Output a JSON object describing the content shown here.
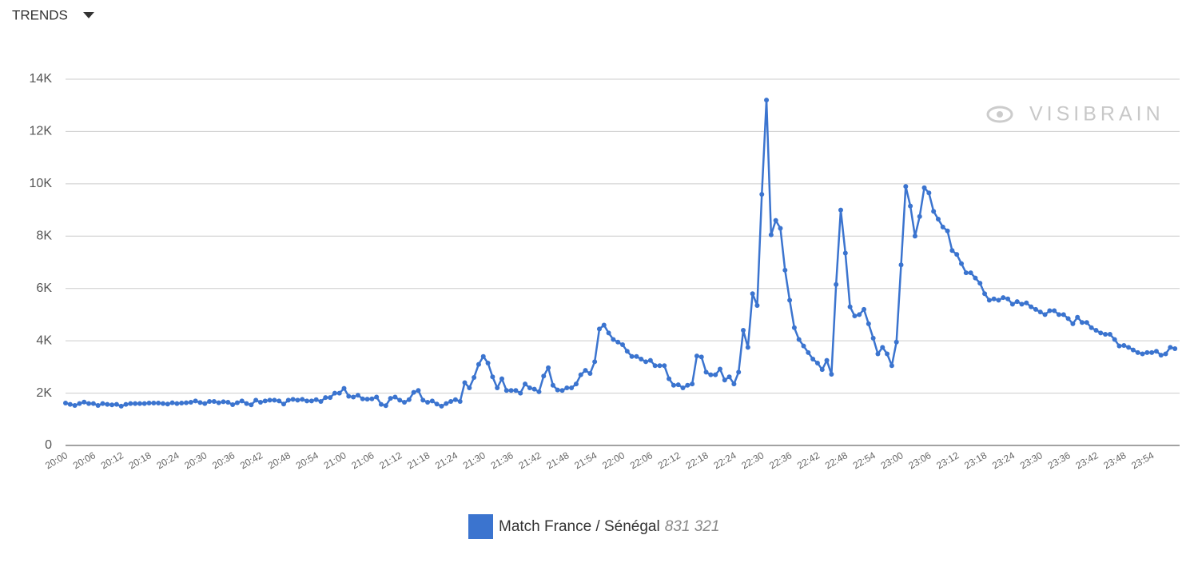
{
  "header": {
    "title": "TRENDS"
  },
  "chart_data": {
    "type": "line",
    "watermark": "VISIBRAIN",
    "categories": [
      "20:00",
      null,
      null,
      null,
      null,
      null,
      "20:06",
      null,
      null,
      null,
      null,
      null,
      "20:12",
      null,
      null,
      null,
      null,
      null,
      "20:18",
      null,
      null,
      null,
      null,
      null,
      "20:24",
      null,
      null,
      null,
      null,
      null,
      "20:30",
      null,
      null,
      null,
      null,
      null,
      "20:36",
      null,
      null,
      null,
      null,
      null,
      "20:42",
      null,
      null,
      null,
      null,
      null,
      "20:48",
      null,
      null,
      null,
      null,
      null,
      "20:54",
      null,
      null,
      null,
      null,
      null,
      "21:00",
      null,
      null,
      null,
      null,
      null,
      "21:06",
      null,
      null,
      null,
      null,
      null,
      "21:12",
      null,
      null,
      null,
      null,
      null,
      "21:18",
      null,
      null,
      null,
      null,
      null,
      "21:24",
      null,
      null,
      null,
      null,
      null,
      "21:30",
      null,
      null,
      null,
      null,
      null,
      "21:36",
      null,
      null,
      null,
      null,
      null,
      "21:42",
      null,
      null,
      null,
      null,
      null,
      "21:48",
      null,
      null,
      null,
      null,
      null,
      "21:54",
      null,
      null,
      null,
      null,
      null,
      "22:00",
      null,
      null,
      null,
      null,
      null,
      "22:06",
      null,
      null,
      null,
      null,
      null,
      "22:12",
      null,
      null,
      null,
      null,
      null,
      "22:18",
      null,
      null,
      null,
      null,
      null,
      "22:24",
      null,
      null,
      null,
      null,
      null,
      "22:30",
      null,
      null,
      null,
      null,
      null,
      "22:36",
      null,
      null,
      null,
      null,
      null,
      "22:42",
      null,
      null,
      null,
      null,
      null,
      "22:48",
      null,
      null,
      null,
      null,
      null,
      "22:54",
      null,
      null,
      null,
      null,
      null,
      "23:00",
      null,
      null,
      null,
      null,
      null,
      "23:06",
      null,
      null,
      null,
      null,
      null,
      "23:12",
      null,
      null,
      null,
      null,
      null,
      "23:18",
      null,
      null,
      null,
      null,
      null,
      "23:24",
      null,
      null,
      null,
      null,
      null,
      "23:30",
      null,
      null,
      null,
      null,
      null,
      "23:36",
      null,
      null,
      null,
      null,
      null,
      "23:42",
      null,
      null,
      null,
      null,
      null,
      "23:48",
      null,
      null,
      null,
      null,
      null,
      "23:54",
      null,
      null,
      null,
      null,
      null
    ],
    "series": [
      {
        "name": "Match France / Sénégal",
        "total_label": "831 321",
        "color": "#3b74cf",
        "values": [
          1620,
          1570,
          1530,
          1600,
          1660,
          1600,
          1600,
          1530,
          1600,
          1570,
          1550,
          1570,
          1500,
          1570,
          1600,
          1600,
          1600,
          1600,
          1620,
          1620,
          1620,
          1600,
          1580,
          1630,
          1600,
          1620,
          1630,
          1650,
          1700,
          1640,
          1600,
          1680,
          1680,
          1630,
          1670,
          1650,
          1560,
          1630,
          1700,
          1600,
          1550,
          1730,
          1650,
          1700,
          1730,
          1730,
          1700,
          1580,
          1730,
          1760,
          1730,
          1760,
          1700,
          1700,
          1750,
          1680,
          1830,
          1830,
          2000,
          2000,
          2180,
          1880,
          1850,
          1920,
          1780,
          1770,
          1780,
          1850,
          1570,
          1520,
          1800,
          1850,
          1730,
          1650,
          1750,
          2030,
          2100,
          1730,
          1650,
          1700,
          1580,
          1500,
          1600,
          1680,
          1750,
          1680,
          2400,
          2200,
          2600,
          3100,
          3400,
          3150,
          2620,
          2200,
          2550,
          2100,
          2100,
          2100,
          2000,
          2350,
          2200,
          2150,
          2050,
          2650,
          2970,
          2300,
          2120,
          2100,
          2200,
          2200,
          2350,
          2700,
          2870,
          2750,
          3200,
          4450,
          4600,
          4300,
          4050,
          3950,
          3850,
          3600,
          3400,
          3400,
          3300,
          3200,
          3250,
          3050,
          3050,
          3050,
          2550,
          2300,
          2320,
          2200,
          2300,
          2350,
          3420,
          3380,
          2800,
          2700,
          2700,
          2920,
          2500,
          2620,
          2350,
          2800,
          4400,
          3750,
          5800,
          5350,
          9600,
          13200,
          8050,
          8600,
          8300,
          6700,
          5550,
          4500,
          4050,
          3800,
          3550,
          3300,
          3150,
          2900,
          3250,
          2720,
          6150,
          9000,
          7350,
          5300,
          4950,
          5000,
          5200,
          4650,
          4100,
          3500,
          3750,
          3500,
          3050,
          3950,
          6900,
          9900,
          9150,
          8000,
          8750,
          9850,
          9650,
          8950,
          8650,
          8350,
          8200,
          7450,
          7300,
          6950,
          6600,
          6600,
          6400,
          6200,
          5800,
          5550,
          5600,
          5550,
          5650,
          5600,
          5400,
          5500,
          5400,
          5450,
          5300,
          5200,
          5100,
          5000,
          5150,
          5150,
          5000,
          5000,
          4850,
          4650,
          4900,
          4700,
          4700,
          4500,
          4400,
          4300,
          4250,
          4250,
          4050,
          3800,
          3820,
          3750,
          3650,
          3550,
          3500,
          3550,
          3550,
          3600,
          3450,
          3500,
          3750,
          3700
        ]
      }
    ],
    "ylim": [
      0,
      14000
    ],
    "yticks": [
      0,
      {
        "value": 2000,
        "label": "2K"
      },
      {
        "value": 4000,
        "label": "4K"
      },
      {
        "value": 6000,
        "label": "6K"
      },
      {
        "value": 8000,
        "label": "8K"
      },
      {
        "value": 10000,
        "label": "10K"
      },
      {
        "value": 12000,
        "label": "12K"
      },
      {
        "value": 14000,
        "label": "14K"
      }
    ],
    "grid": true
  }
}
